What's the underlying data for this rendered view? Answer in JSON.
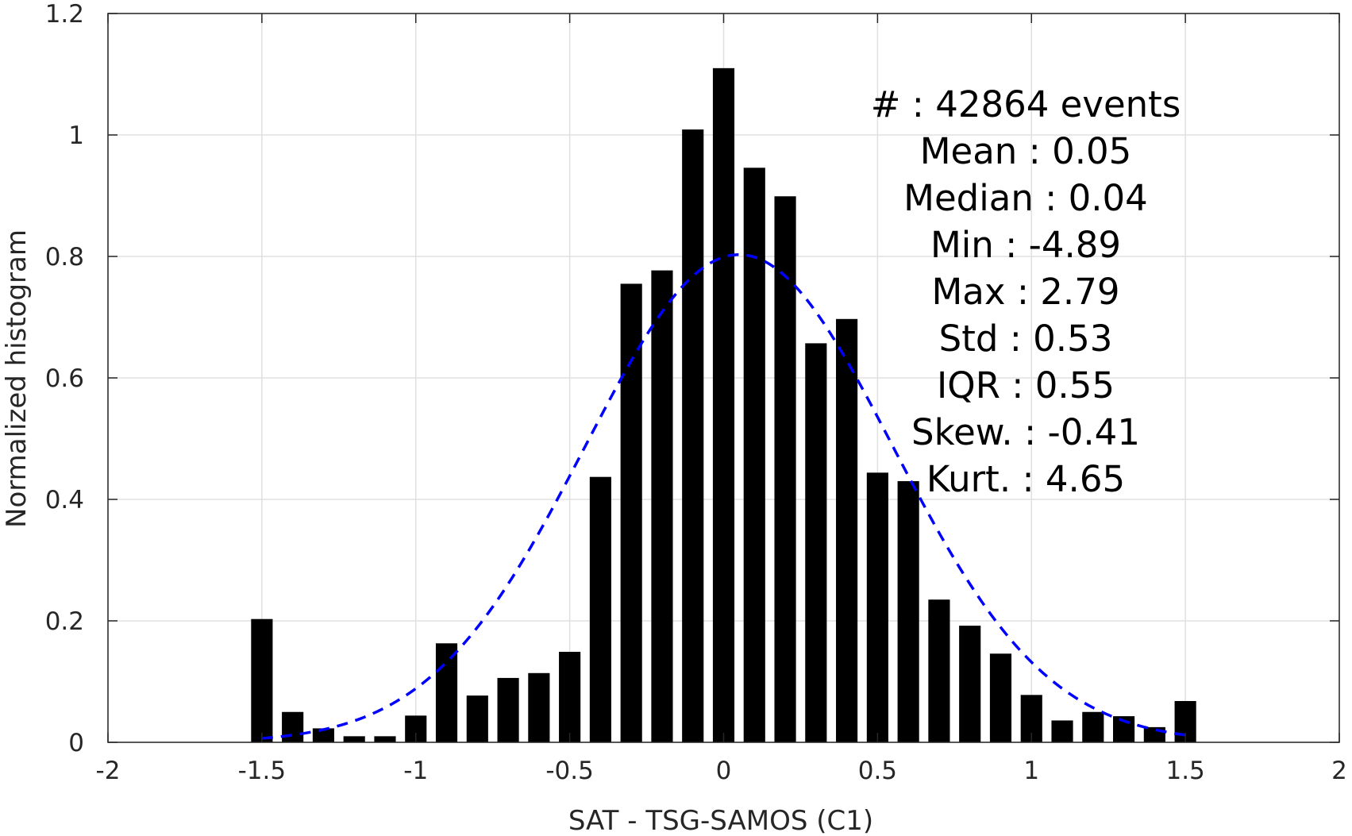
{
  "chart_data": {
    "type": "bar",
    "xlabel": "SAT - TSG-SAMOS (C1)",
    "ylabel": "Normalized histogram",
    "xlim": [
      -2,
      2
    ],
    "ylim": [
      0,
      1.2
    ],
    "xticks": [
      "-2",
      "-1.5",
      "-1",
      "-0.5",
      "0",
      "0.5",
      "1",
      "1.5",
      "2"
    ],
    "yticks": [
      "0",
      "0.2",
      "0.4",
      "0.6",
      "0.8",
      "1",
      "1.2"
    ],
    "grid": true,
    "bar_width": 0.07,
    "series": [
      {
        "kind": "histogram",
        "color": "#000000",
        "x": [
          -1.5,
          -1.4,
          -1.3,
          -1.2,
          -1.1,
          -1.0,
          -0.9,
          -0.8,
          -0.7,
          -0.6,
          -0.5,
          -0.4,
          -0.3,
          -0.2,
          -0.1,
          0.0,
          0.1,
          0.2,
          0.3,
          0.4,
          0.5,
          0.6,
          0.7,
          0.8,
          0.9,
          1.0,
          1.1,
          1.2,
          1.3,
          1.4,
          1.5
        ],
        "values": [
          0.203,
          0.05,
          0.023,
          0.01,
          0.01,
          0.044,
          0.163,
          0.077,
          0.106,
          0.114,
          0.149,
          0.437,
          0.755,
          0.777,
          1.009,
          1.11,
          0.946,
          0.899,
          0.657,
          0.697,
          0.444,
          0.43,
          0.235,
          0.192,
          0.146,
          0.078,
          0.036,
          0.05,
          0.043,
          0.025,
          0.068
        ]
      },
      {
        "kind": "fit",
        "style": "dashed",
        "color": "#0000ff",
        "mean": 0.05,
        "std": 0.5,
        "peak": 0.803,
        "x_range": [
          -1.5,
          1.5
        ]
      }
    ],
    "annotations": [
      {
        "label": "#  ",
        "value": ": 42864 events"
      },
      {
        "label": "Mean ",
        "value": ": 0.05"
      },
      {
        "label": "Median ",
        "value": ": 0.04"
      },
      {
        "label": "Min ",
        "value": ": -4.89"
      },
      {
        "label": "Max ",
        "value": ": 2.79"
      },
      {
        "label": "Std ",
        "value": ": 0.53"
      },
      {
        "label": "IQR ",
        "value": ": 0.55"
      },
      {
        "label": "Skew. ",
        "value": ": -0.41"
      },
      {
        "label": "Kurt. ",
        "value": ": 4.65"
      }
    ]
  }
}
